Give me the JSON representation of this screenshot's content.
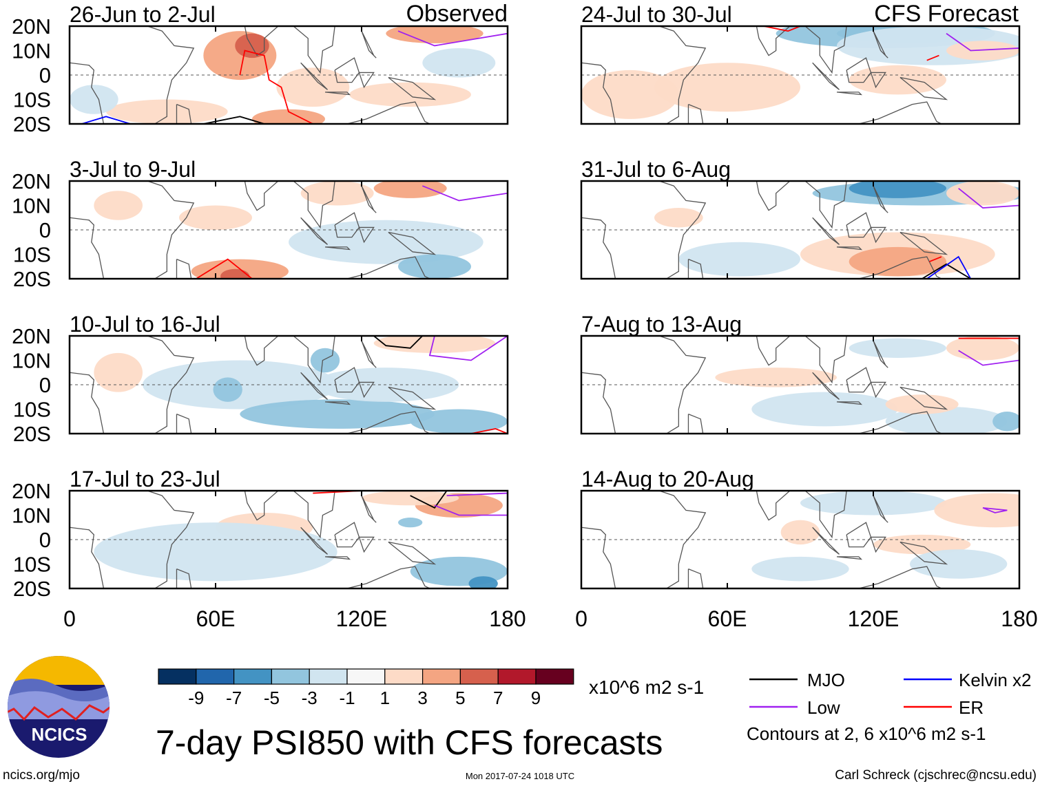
{
  "title": "7-day PSI850 with CFS forecasts",
  "units": "x10^6 m2 s-1",
  "footer": {
    "left": "ncics.org/mjo",
    "center": "Mon 2017-07-24 1018 UTC",
    "right": "Carl Schreck (cjschrec@ncsu.edu)"
  },
  "logo_text": "NCICS",
  "column_labels": {
    "left": "Observed",
    "right": "CFS Forecast"
  },
  "lat_ticks": [
    "20N",
    "10N",
    "0",
    "10S",
    "20S"
  ],
  "lon_ticks": [
    "0",
    "60E",
    "120E",
    "180"
  ],
  "colorbar": {
    "labels": [
      "-9",
      "-7",
      "-5",
      "-3",
      "-1",
      "1",
      "3",
      "5",
      "7",
      "9"
    ],
    "colors": [
      "#053061",
      "#2166ac",
      "#4393c3",
      "#92c5de",
      "#d1e5f0",
      "#f7f7f7",
      "#fddbc7",
      "#f4a582",
      "#d6604d",
      "#b2182b",
      "#67001f"
    ]
  },
  "legend": {
    "items": [
      {
        "label": "MJO",
        "color": "#000000"
      },
      {
        "label": "Kelvin x2",
        "color": "#0000ff"
      },
      {
        "label": "Low",
        "color": "#a020f0"
      },
      {
        "label": "ER",
        "color": "#ff0000"
      }
    ],
    "note": "Contours at 2, 6 x10^6 m2 s-1"
  },
  "chart_data": {
    "type": "heatmap",
    "variable": "PSI850 anomaly",
    "lon_range": [
      0,
      180
    ],
    "lat_range": [
      -20,
      20
    ],
    "panels": [
      {
        "label": "26-Jun to 2-Jul",
        "kind": "Observed"
      },
      {
        "label": "3-Jul to 9-Jul",
        "kind": "Observed"
      },
      {
        "label": "10-Jul to 16-Jul",
        "kind": "Observed"
      },
      {
        "label": "17-Jul to 23-Jul",
        "kind": "Observed"
      },
      {
        "label": "24-Jul to 30-Jul",
        "kind": "CFS Forecast"
      },
      {
        "label": "31-Jul to 6-Aug",
        "kind": "CFS Forecast"
      },
      {
        "label": "7-Aug to 13-Aug",
        "kind": "CFS Forecast"
      },
      {
        "label": "14-Aug to 20-Aug",
        "kind": "CFS Forecast"
      }
    ]
  }
}
